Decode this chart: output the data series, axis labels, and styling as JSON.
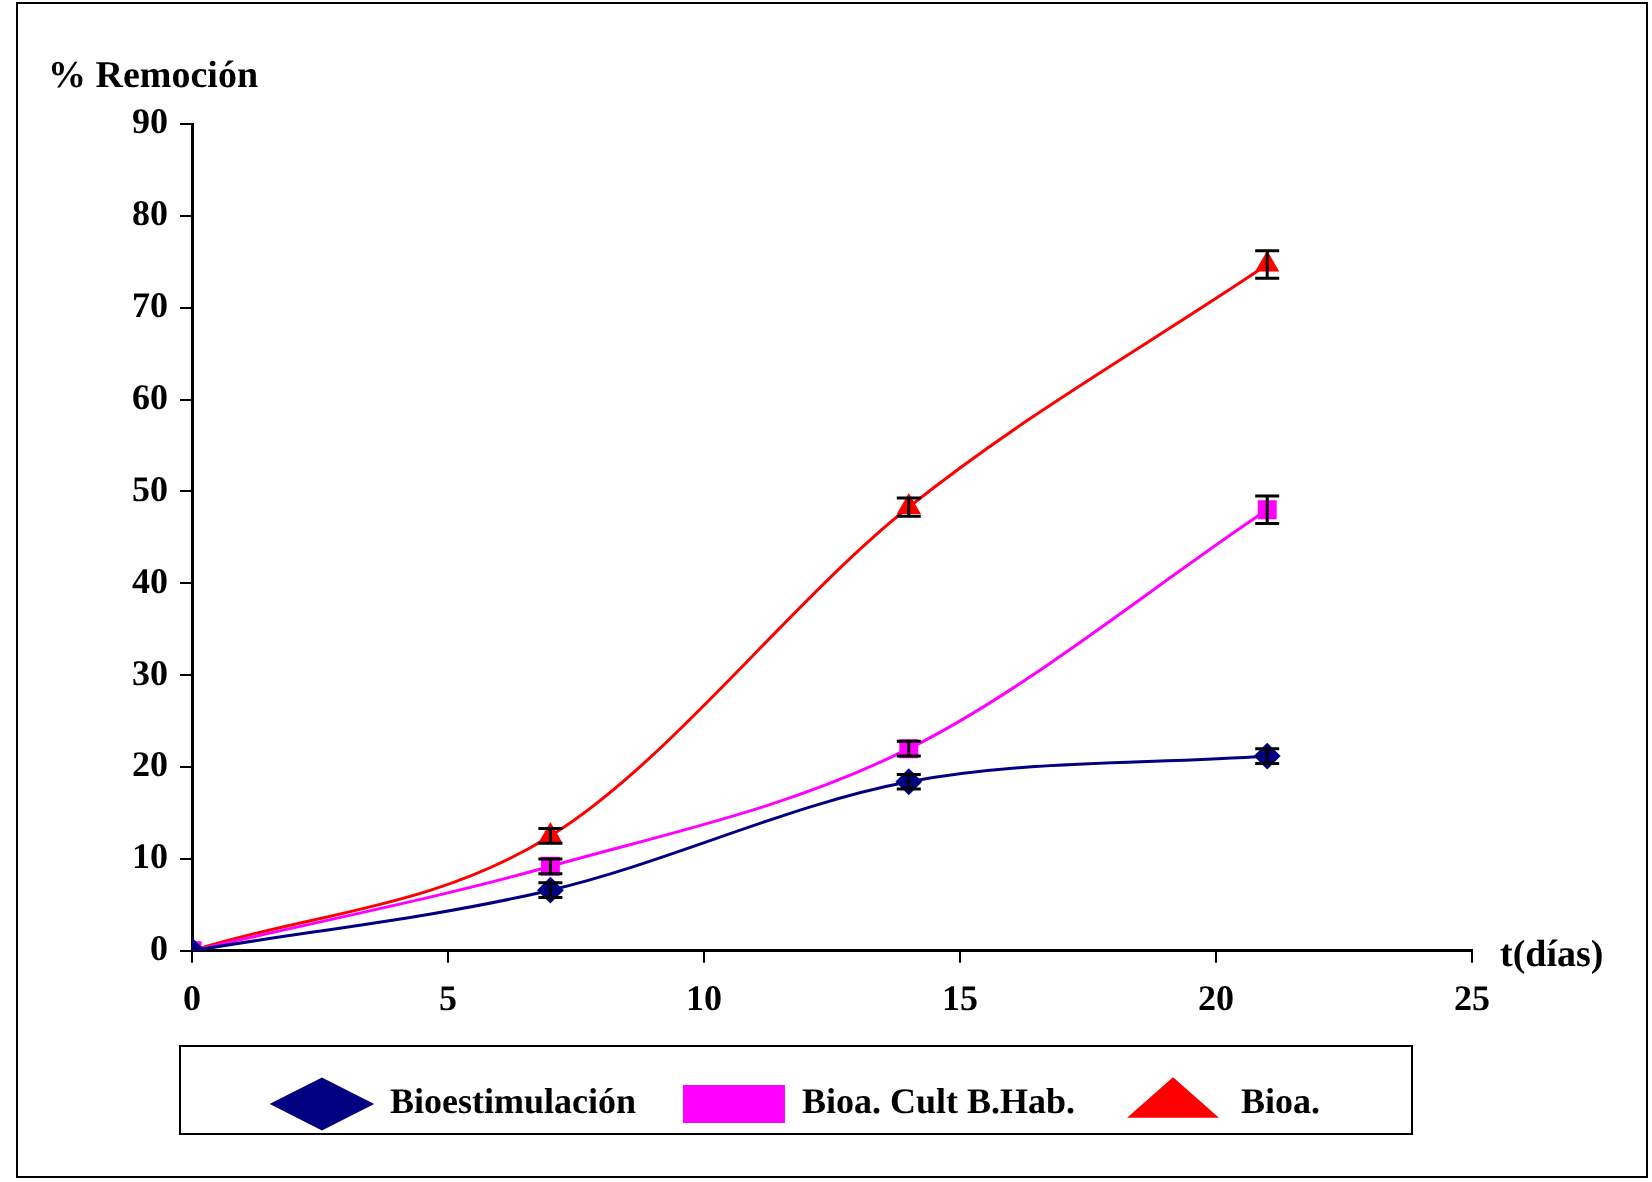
{
  "chart_data": {
    "type": "line",
    "ylabel": "% Remoción",
    "xlabel": "t(días)",
    "xlim": [
      0,
      25
    ],
    "xticks": [
      0,
      5,
      10,
      15,
      20,
      25
    ],
    "ylim": [
      0,
      90
    ],
    "yticks": [
      0,
      10,
      20,
      30,
      40,
      50,
      60,
      70,
      80,
      90
    ],
    "grid": false,
    "legend": "bottom",
    "series": [
      {
        "name": "Bioestimulación",
        "color": "#000080",
        "marker": "diamond",
        "x": [
          0,
          7,
          14,
          21
        ],
        "values": [
          0,
          6.6,
          18.4,
          21.2
        ],
        "errors": [
          null,
          0.8,
          0.8,
          0.8
        ]
      },
      {
        "name": "Bioa. Cult B.Hab.",
        "color": "#ff00ff",
        "marker": "square",
        "x": [
          0,
          7,
          14,
          21
        ],
        "values": [
          0,
          9.2,
          22,
          48
        ],
        "errors": [
          null,
          0.8,
          0.8,
          1.5
        ]
      },
      {
        "name": "Bioa.",
        "color": "#ff0000",
        "marker": "triangle",
        "x": [
          0,
          7,
          14,
          21
        ],
        "values": [
          0,
          12.5,
          48.3,
          74.7
        ],
        "errors": [
          null,
          0.8,
          1,
          1.5
        ]
      }
    ]
  }
}
